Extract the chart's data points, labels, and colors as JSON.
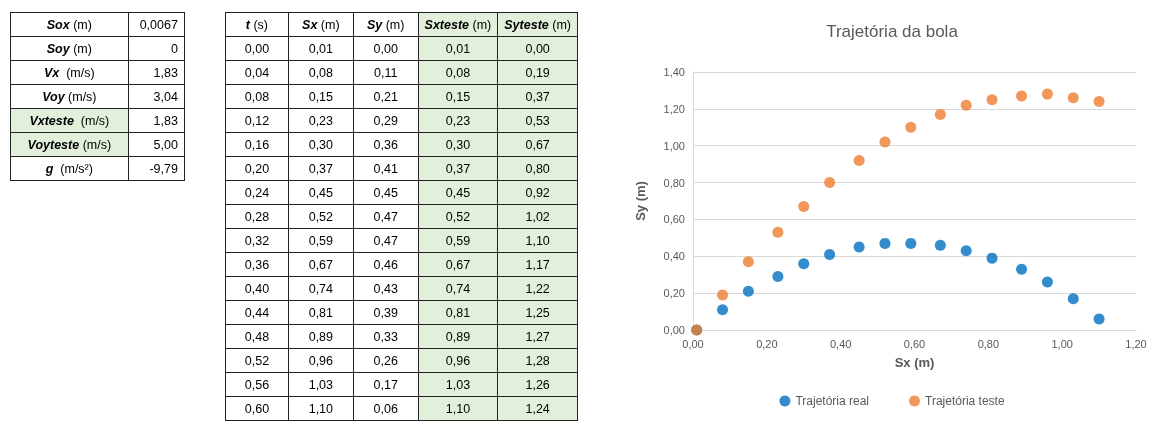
{
  "chart_data": [
    {
      "type": "other",
      "y_categories": [
        "Sox (m)",
        "Soy (m)",
        "Vx  (m/s)",
        "Voy (m/s)",
        "Vxteste  (m/s)",
        "Voyteste (m/s)",
        "g  (m/s²)"
      ],
      "cell_labels": [
        [
          "0,0067"
        ],
        [
          "0"
        ],
        [
          "1,83"
        ],
        [
          "3,04"
        ],
        [
          "1,83"
        ],
        [
          "5,00"
        ],
        [
          "-9,79"
        ]
      ],
      "colors": [
        "#ffffff",
        "#ffffff",
        "#ffffff",
        "#ffffff",
        "#e2efda",
        "#e2efda",
        "#ffffff"
      ]
    },
    {
      "type": "other",
      "categories": [
        "t (s)",
        "Sx (m)",
        "Sy (m)",
        "Sxteste (m)",
        "Syteste (m)"
      ],
      "colors": [
        "#ffffff",
        "#ffffff",
        "#ffffff",
        "#e2efda",
        "#e2efda"
      ],
      "cell_labels": [
        [
          "0,00",
          "0,01",
          "0,00",
          "0,01",
          "0,00"
        ],
        [
          "0,04",
          "0,08",
          "0,11",
          "0,08",
          "0,19"
        ],
        [
          "0,08",
          "0,15",
          "0,21",
          "0,15",
          "0,37"
        ],
        [
          "0,12",
          "0,23",
          "0,29",
          "0,23",
          "0,53"
        ],
        [
          "0,16",
          "0,30",
          "0,36",
          "0,30",
          "0,67"
        ],
        [
          "0,20",
          "0,37",
          "0,41",
          "0,37",
          "0,80"
        ],
        [
          "0,24",
          "0,45",
          "0,45",
          "0,45",
          "0,92"
        ],
        [
          "0,28",
          "0,52",
          "0,47",
          "0,52",
          "1,02"
        ],
        [
          "0,32",
          "0,59",
          "0,47",
          "0,59",
          "1,10"
        ],
        [
          "0,36",
          "0,67",
          "0,46",
          "0,67",
          "1,17"
        ],
        [
          "0,40",
          "0,74",
          "0,43",
          "0,74",
          "1,22"
        ],
        [
          "0,44",
          "0,81",
          "0,39",
          "0,81",
          "1,25"
        ],
        [
          "0,48",
          "0,89",
          "0,33",
          "0,89",
          "1,27"
        ],
        [
          "0,52",
          "0,96",
          "0,26",
          "0,96",
          "1,28"
        ],
        [
          "0,56",
          "1,03",
          "0,17",
          "1,03",
          "1,26"
        ],
        [
          "0,60",
          "1,10",
          "0,06",
          "1,10",
          "1,24"
        ]
      ]
    },
    {
      "type": "scatter",
      "title": "Trajetória da bola",
      "xlabel": "Sx (m)",
      "ylabel": "Sy (m)",
      "x": [
        0.01,
        0.08,
        0.15,
        0.23,
        0.3,
        0.37,
        0.45,
        0.52,
        0.59,
        0.67,
        0.74,
        0.81,
        0.89,
        0.96,
        1.03,
        1.1
      ],
      "series": [
        {
          "name": "Trajetória real",
          "color": "#0070c0",
          "values": [
            0.0,
            0.11,
            0.21,
            0.29,
            0.36,
            0.41,
            0.45,
            0.47,
            0.47,
            0.46,
            0.43,
            0.39,
            0.33,
            0.26,
            0.17,
            0.06
          ]
        },
        {
          "name": "Trajetória teste",
          "color": "#ed7d31",
          "values": [
            0.0,
            0.19,
            0.37,
            0.53,
            0.67,
            0.8,
            0.92,
            1.02,
            1.1,
            1.17,
            1.22,
            1.25,
            1.27,
            1.28,
            1.26,
            1.24
          ]
        }
      ],
      "xlim": [
        0,
        1.2
      ],
      "xticks": [
        {
          "value": 0,
          "label": "0,00"
        },
        {
          "value": 0.2,
          "label": "0,20"
        },
        {
          "value": 0.4,
          "label": "0,40"
        },
        {
          "value": 0.6,
          "label": "0,60"
        },
        {
          "value": 0.8,
          "label": "0,80"
        },
        {
          "value": 1.0,
          "label": "1,00"
        },
        {
          "value": 1.2,
          "label": "1,20"
        }
      ],
      "ylim": [
        0,
        1.4
      ],
      "yticks": [
        {
          "value": 0,
          "label": "0,00"
        },
        {
          "value": 0.2,
          "label": "0,20"
        },
        {
          "value": 0.4,
          "label": "0,40"
        },
        {
          "value": 0.6,
          "label": "0,60"
        },
        {
          "value": 0.8,
          "label": "0,80"
        },
        {
          "value": 1.0,
          "label": "1,00"
        },
        {
          "value": 1.2,
          "label": "1,20"
        },
        {
          "value": 1.4,
          "label": "1,40"
        }
      ],
      "grid": "y",
      "legend": "bottom",
      "marker": "circle"
    }
  ]
}
